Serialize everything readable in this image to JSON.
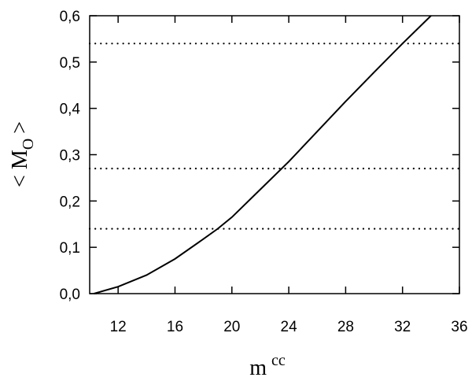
{
  "chart_data": {
    "type": "line",
    "xlabel": "m",
    "xlabel_sup": "cc",
    "ylabel": "< M",
    "ylabel_sub": "O",
    "ylabel_end": ">",
    "x": [
      10.3,
      12,
      14,
      16,
      18,
      19,
      20,
      22,
      24,
      26,
      28,
      30,
      32,
      34
    ],
    "series": [
      {
        "color": "#000000",
        "values": [
          0,
          0.015,
          0.04,
          0.075,
          0.118,
          0.14,
          0.165,
          0.225,
          0.285,
          0.35,
          0.415,
          0.478,
          0.54,
          0.6
        ]
      }
    ],
    "hlines": [
      0.54,
      0.27,
      0.14
    ],
    "xlim": [
      10,
      36
    ],
    "xticks": [
      12,
      16,
      20,
      24,
      28,
      32,
      36
    ],
    "ylim": [
      0,
      0.6
    ],
    "yticks": [
      {
        "value": 0,
        "label": "0,0"
      },
      {
        "value": 0.1,
        "label": "0,1"
      },
      {
        "value": 0.2,
        "label": "0,2"
      },
      {
        "value": 0.3,
        "label": "0,3"
      },
      {
        "value": 0.4,
        "label": "0,4"
      },
      {
        "value": 0.5,
        "label": "0,5"
      },
      {
        "value": 0.6,
        "label": "0,6"
      }
    ]
  }
}
